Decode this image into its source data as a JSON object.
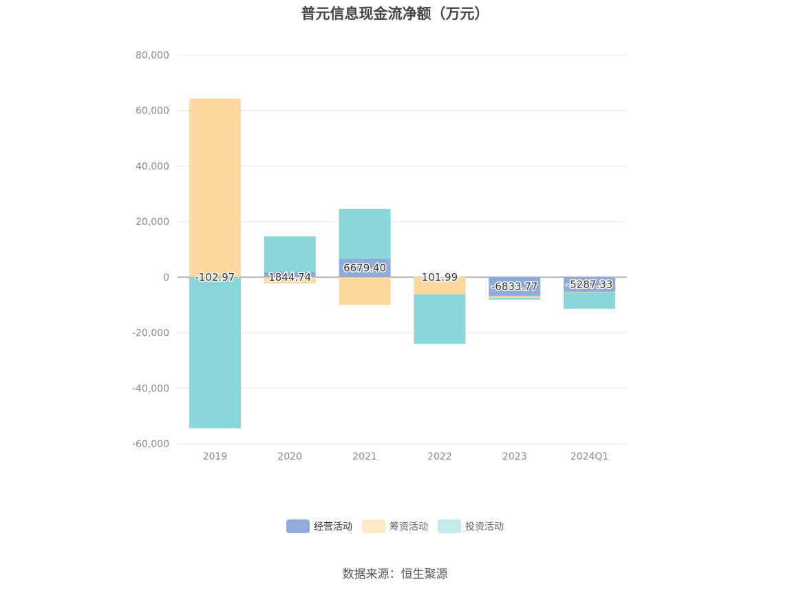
{
  "title": "普元信息现金流净额（万元）",
  "source": "数据来源：恒生聚源",
  "colors": {
    "operating": "#8EABD9",
    "financing": "#FED89E",
    "investing": "#89D6DA",
    "operating_legend": "#8EABD9",
    "financing_legend": "#FEE8C6",
    "investing_legend": "#C4E9EB",
    "grid": "#E3E6F0",
    "axis_text": "#888888",
    "zero_line": "#666666"
  },
  "chart_data": {
    "type": "bar",
    "stacked": true,
    "categories": [
      "2019",
      "2020",
      "2021",
      "2022",
      "2023",
      "2024Q1"
    ],
    "ylim": [
      -60000,
      80000
    ],
    "yticks": [
      80000,
      60000,
      40000,
      20000,
      0,
      -20000,
      -40000,
      -60000
    ],
    "ytick_labels": [
      "80,000",
      "60,000",
      "40,000",
      "20,000",
      "0",
      "-20,000",
      "-40,000",
      "-60,000"
    ],
    "grid": true,
    "legend_position": "bottom",
    "series": [
      {
        "name": "经营活动",
        "key": "operating",
        "values": [
          -102.97,
          1844.74,
          6679.4,
          101.99,
          -6833.77,
          -5287.33
        ],
        "labels": [
          "-102.97",
          "1844.74",
          "6679.40",
          "101.99",
          "-6833.77",
          "-5287.33"
        ]
      },
      {
        "name": "筹资活动",
        "key": "financing",
        "values": [
          64300,
          -2300,
          -10000,
          -6200,
          -600,
          -200
        ]
      },
      {
        "name": "投资活动",
        "key": "investing",
        "values": [
          -54300,
          12900,
          17900,
          -17800,
          -700,
          -5900
        ]
      }
    ]
  }
}
